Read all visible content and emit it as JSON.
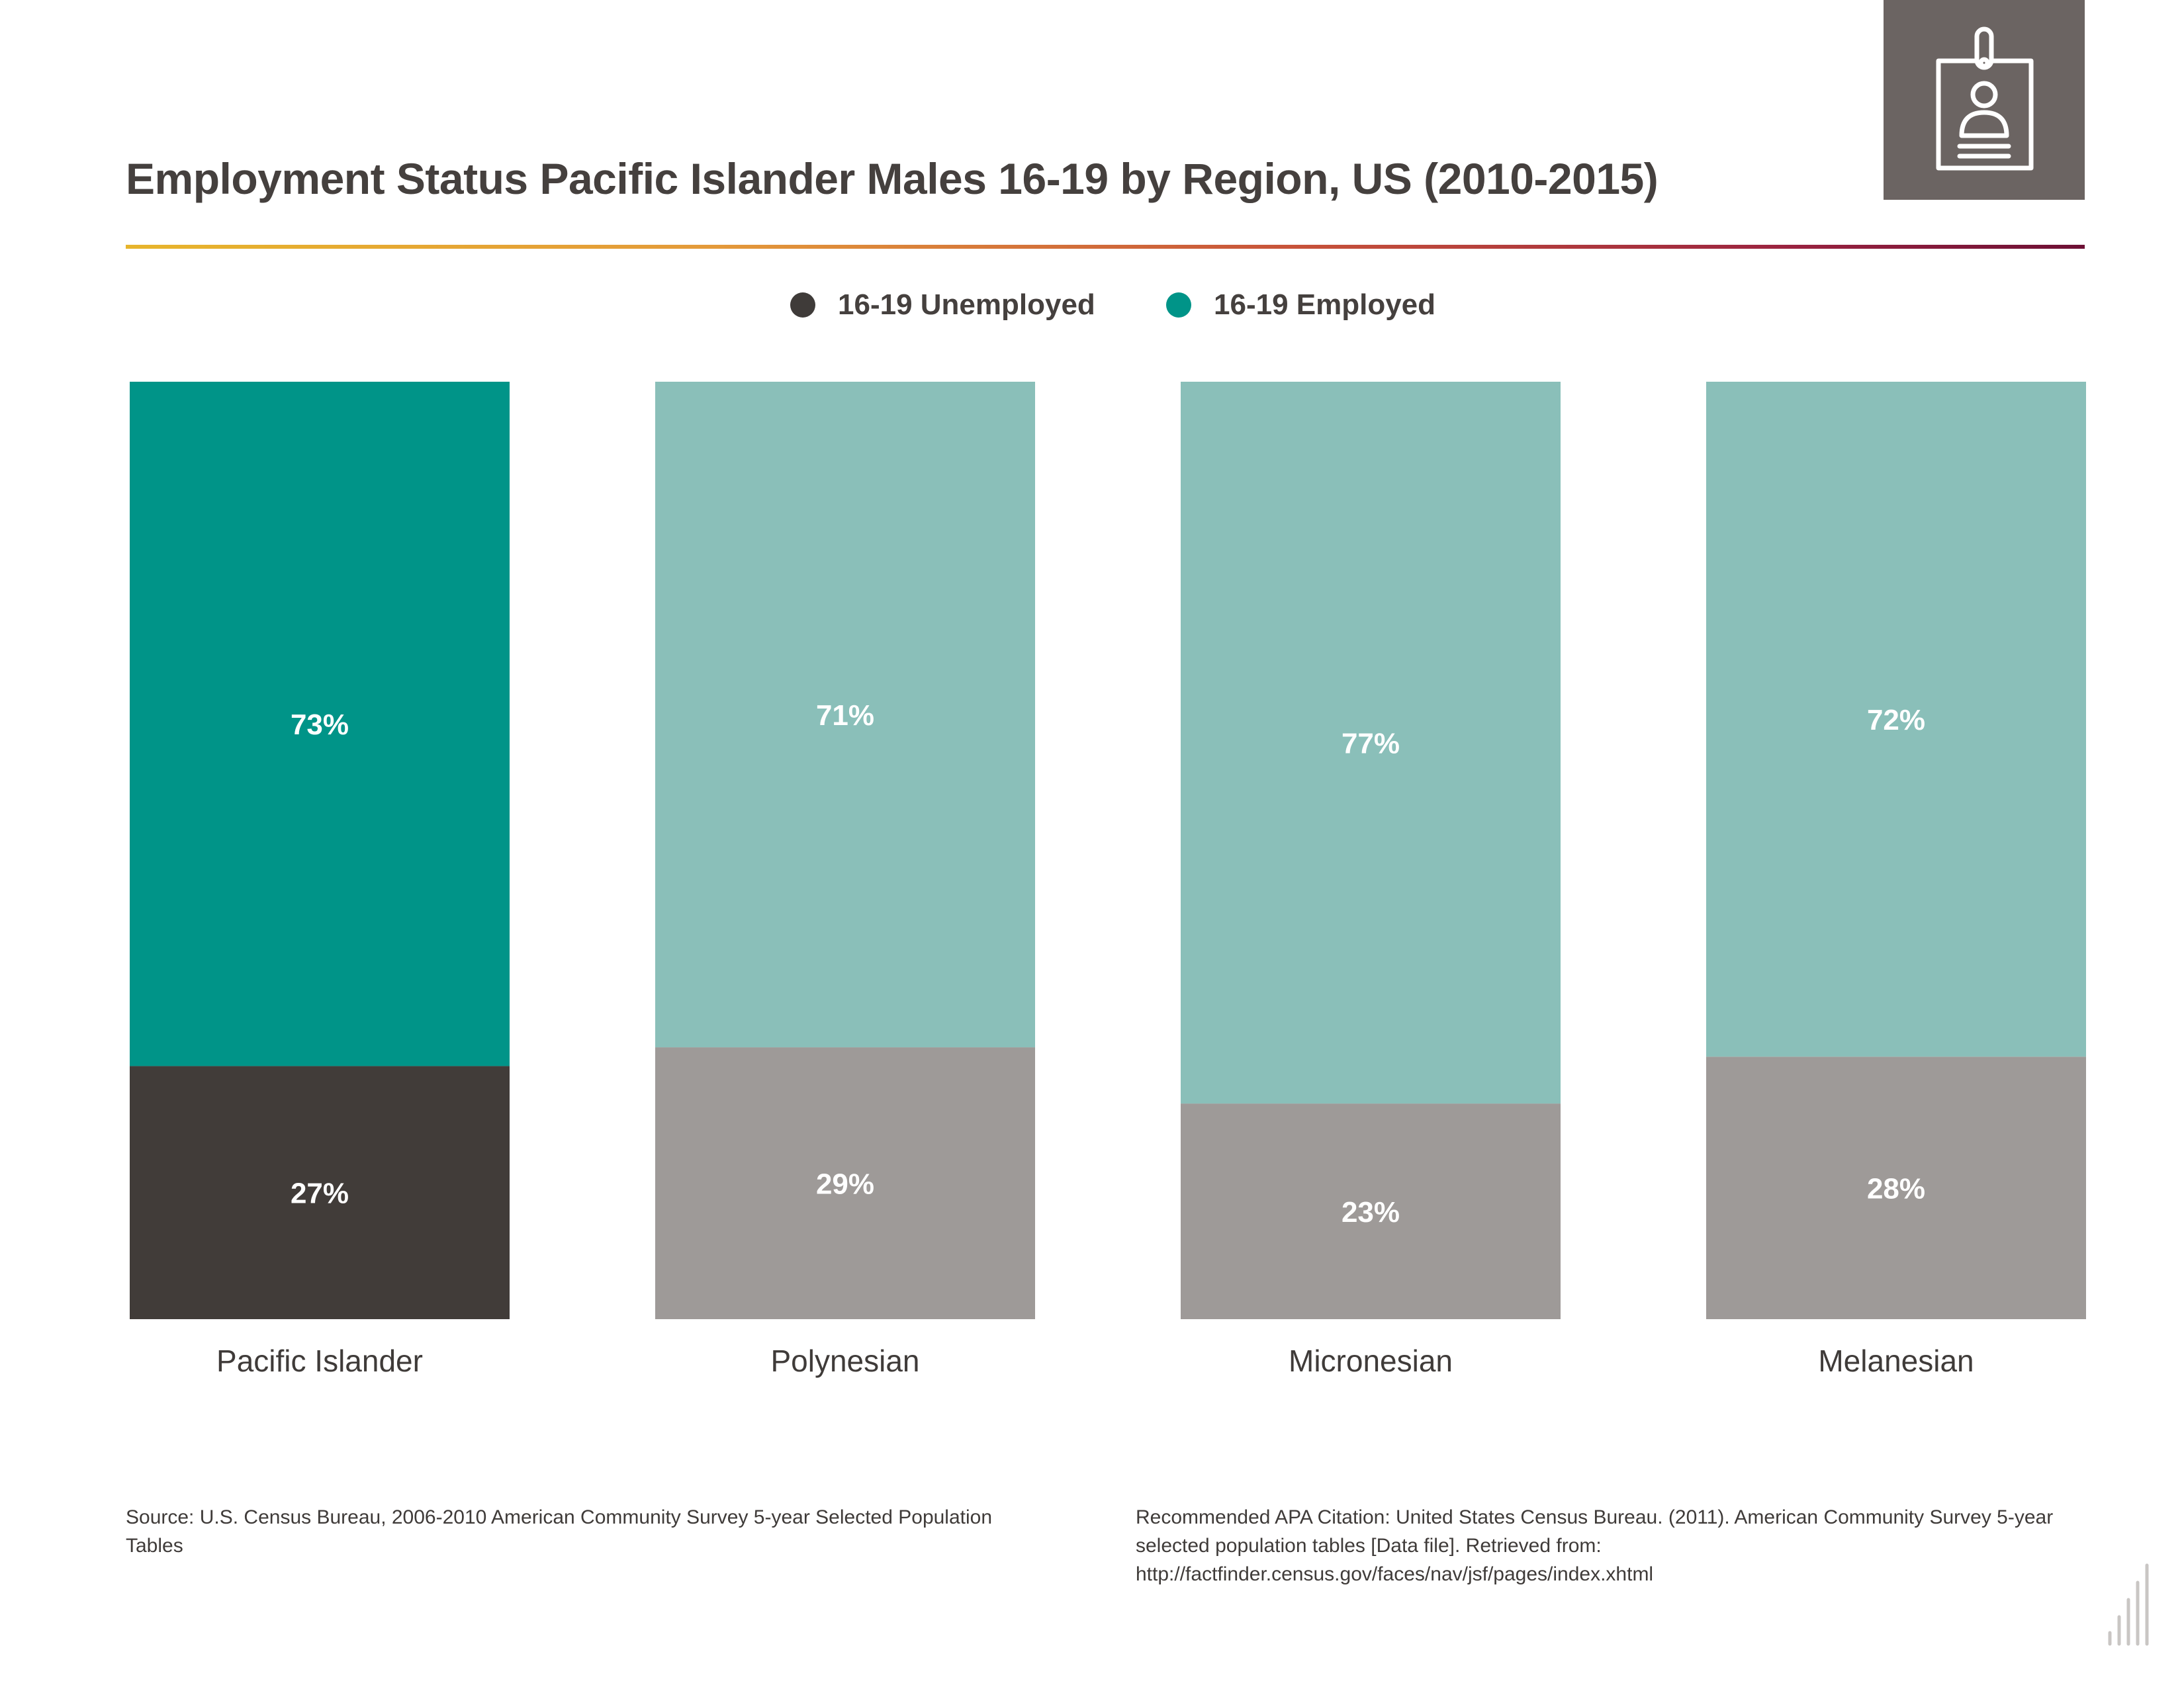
{
  "title": "Employment Status Pacific Islander Males 16-19 by Region, US (2010-2015)",
  "icon": "id-badge-icon",
  "colors": {
    "title_rule_start": "#e7b52c",
    "title_rule_end": "#6d1035",
    "icon_box": "#6b6462",
    "unemployed_highlight": "#413c39",
    "employed_highlight": "#009488",
    "unemployed_muted": "#9e9a98",
    "employed_muted": "#8abfb9"
  },
  "legend": [
    {
      "label": "16-19 Unemployed",
      "color": "#3f3b39"
    },
    {
      "label": "16-19 Employed",
      "color": "#009488"
    }
  ],
  "chart_data": {
    "type": "bar",
    "stacked": true,
    "percent_stacked": true,
    "categories": [
      "Pacific Islander",
      "Polynesian",
      "Micronesian",
      "Melanesian"
    ],
    "series": [
      {
        "name": "16-19 Unemployed",
        "values": [
          27,
          29,
          23,
          28
        ],
        "labels": [
          "27%",
          "29%",
          "23%",
          "28%"
        ]
      },
      {
        "name": "16-19 Employed",
        "values": [
          73,
          71,
          77,
          72
        ],
        "labels": [
          "73%",
          "71%",
          "77%",
          "72%"
        ]
      }
    ],
    "highlighted_category": "Pacific Islander",
    "ylim": [
      0,
      100
    ],
    "grid": false,
    "legend_position": "top-center"
  },
  "footer": {
    "source": "Source:  U.S. Census Bureau, 2006-2010 American Community Survey 5-year Selected Population Tables",
    "citation": "Recommended APA Citation: United States Census Bureau. (2011). American Community Survey 5-year selected population tables [Data file]. Retrieved from: http://factfinder.census.gov/faces/nav/jsf/pages/index.xhtml"
  },
  "corner_icon": "bar-chart-logo-icon"
}
